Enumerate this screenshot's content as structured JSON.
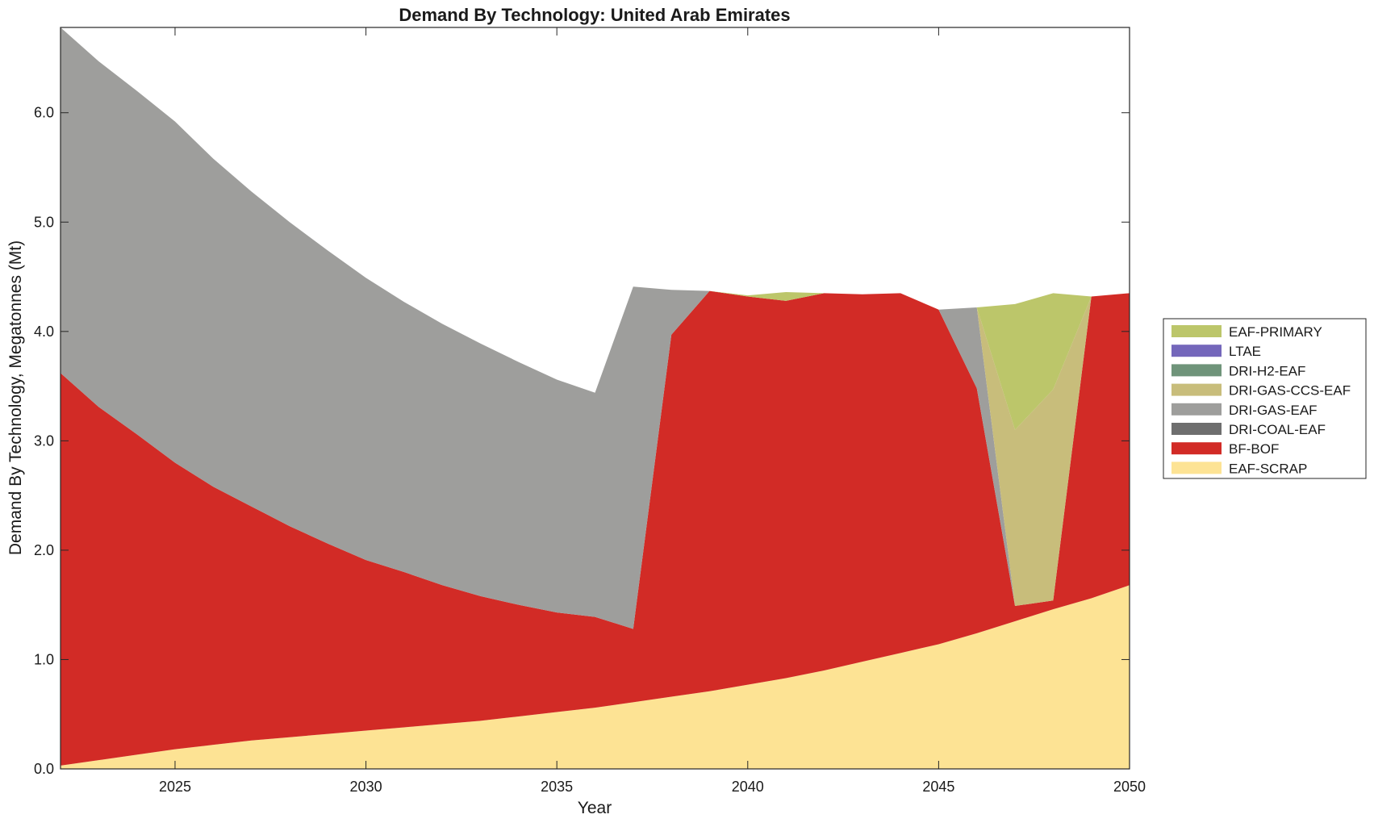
{
  "chart_data": {
    "type": "area",
    "stacked": true,
    "title": "Demand By Technology: United Arab Emirates",
    "xlabel": "Year",
    "ylabel": "Demand By Technology, Megatonnes (Mt)",
    "xlim": [
      2022,
      2050
    ],
    "ylim": [
      0,
      6.78
    ],
    "xticks": [
      2025,
      2030,
      2035,
      2040,
      2045,
      2050
    ],
    "xtick_labels": [
      "2025",
      "2030",
      "2035",
      "2040",
      "2045",
      "2050"
    ],
    "yticks": [
      0,
      1,
      2,
      3,
      4,
      5,
      6
    ],
    "ytick_labels": [
      "0.0",
      "1.0",
      "2.0",
      "3.0",
      "4.0",
      "5.0",
      "6.0"
    ],
    "legend_position": "right",
    "x": [
      2022,
      2023,
      2024,
      2025,
      2026,
      2027,
      2028,
      2029,
      2030,
      2031,
      2032,
      2033,
      2034,
      2035,
      2036,
      2037,
      2038,
      2039,
      2040,
      2041,
      2042,
      2043,
      2044,
      2045,
      2046,
      2047,
      2048,
      2049,
      2050
    ],
    "series": [
      {
        "name": "EAF-SCRAP",
        "color": "#fde394",
        "values": [
          0.03,
          0.08,
          0.13,
          0.18,
          0.22,
          0.26,
          0.29,
          0.32,
          0.35,
          0.38,
          0.41,
          0.44,
          0.48,
          0.52,
          0.56,
          0.61,
          0.66,
          0.71,
          0.77,
          0.83,
          0.9,
          0.98,
          1.06,
          1.14,
          1.24,
          1.35,
          1.46,
          1.56,
          1.68
        ]
      },
      {
        "name": "BF-BOF",
        "color": "#d22b26",
        "values": [
          3.59,
          3.23,
          2.93,
          2.62,
          2.36,
          2.14,
          1.93,
          1.74,
          1.56,
          1.42,
          1.27,
          1.14,
          1.02,
          0.91,
          0.83,
          0.67,
          3.31,
          3.66,
          3.55,
          3.45,
          3.45,
          3.36,
          3.29,
          3.06,
          2.24,
          0.14,
          0.08,
          2.76,
          2.67
        ]
      },
      {
        "name": "DRI-COAL-EAF",
        "color": "#6e6e6e",
        "values": [
          0,
          0,
          0,
          0,
          0,
          0,
          0,
          0,
          0,
          0,
          0,
          0,
          0,
          0,
          0,
          0,
          0,
          0,
          0,
          0,
          0,
          0,
          0,
          0,
          0,
          0,
          0,
          0,
          0
        ]
      },
      {
        "name": "DRI-GAS-EAF",
        "color": "#9e9e9c",
        "values": [
          3.16,
          3.16,
          3.14,
          3.12,
          3.0,
          2.88,
          2.78,
          2.68,
          2.58,
          2.47,
          2.39,
          2.31,
          2.22,
          2.13,
          2.05,
          3.13,
          0.41,
          0,
          0,
          0,
          0,
          0,
          0,
          0,
          0.74,
          0,
          0,
          0,
          0
        ]
      },
      {
        "name": "DRI-GAS-CCS-EAF",
        "color": "#c8bd7b",
        "values": [
          0,
          0,
          0,
          0,
          0,
          0,
          0,
          0,
          0,
          0,
          0,
          0,
          0,
          0,
          0,
          0,
          0,
          0,
          0,
          0,
          0,
          0,
          0,
          0,
          0,
          1.61,
          1.93,
          0,
          0
        ]
      },
      {
        "name": "DRI-H2-EAF",
        "color": "#6f947a",
        "values": [
          0,
          0,
          0,
          0,
          0,
          0,
          0,
          0,
          0,
          0,
          0,
          0,
          0,
          0,
          0,
          0,
          0,
          0,
          0,
          0,
          0,
          0,
          0,
          0,
          0,
          0,
          0,
          0,
          0
        ]
      },
      {
        "name": "LTAE",
        "color": "#7467bb",
        "values": [
          0,
          0,
          0,
          0,
          0,
          0,
          0,
          0,
          0,
          0,
          0,
          0,
          0,
          0,
          0,
          0,
          0,
          0,
          0,
          0,
          0,
          0,
          0,
          0,
          0,
          0,
          0,
          0,
          0
        ]
      },
      {
        "name": "EAF-PRIMARY",
        "color": "#bcc66a",
        "values": [
          0,
          0,
          0,
          0,
          0,
          0,
          0,
          0,
          0,
          0,
          0,
          0,
          0,
          0,
          0,
          0,
          0,
          0,
          0.01,
          0.08,
          0,
          0,
          0,
          0,
          0,
          1.15,
          0.88,
          0,
          0
        ]
      }
    ],
    "legend_order": [
      "EAF-PRIMARY",
      "LTAE",
      "DRI-H2-EAF",
      "DRI-GAS-CCS-EAF",
      "DRI-GAS-EAF",
      "DRI-COAL-EAF",
      "BF-BOF",
      "EAF-SCRAP"
    ]
  }
}
